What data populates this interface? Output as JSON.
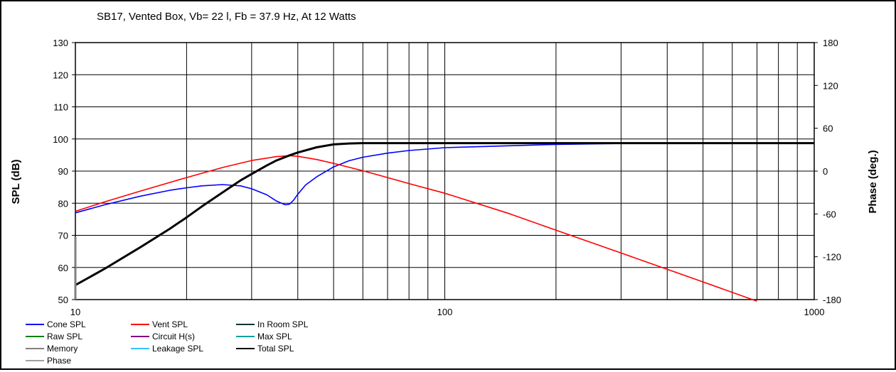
{
  "chart_data": {
    "type": "line",
    "title": "SB17,  Vented Box, Vb= 22 l,  Fb = 37.9 Hz,  At 12 Watts",
    "xlabel": "",
    "ylabel": "SPL (dB)",
    "y2label": "Phase (deg.)",
    "x_scale": "log",
    "xlim": [
      10,
      1000
    ],
    "ylim": [
      50,
      130
    ],
    "y2lim": [
      -180,
      180
    ],
    "grid": true,
    "x_ticks": [
      {
        "value": 10,
        "label": "10"
      },
      {
        "value": 100,
        "label": "100"
      },
      {
        "value": 1000,
        "label": "1000"
      }
    ],
    "y_ticks": [
      {
        "value": 50,
        "label": "50"
      },
      {
        "value": 60,
        "label": "60"
      },
      {
        "value": 70,
        "label": "70"
      },
      {
        "value": 80,
        "label": "80"
      },
      {
        "value": 90,
        "label": "90"
      },
      {
        "value": 100,
        "label": "100"
      },
      {
        "value": 110,
        "label": "110"
      },
      {
        "value": 120,
        "label": "120"
      },
      {
        "value": 130,
        "label": "130"
      }
    ],
    "y2_ticks": [
      {
        "value": 180,
        "label": "180"
      },
      {
        "value": 120,
        "label": "120"
      },
      {
        "value": 60,
        "label": "60"
      },
      {
        "value": 0,
        "label": "0"
      },
      {
        "value": -60,
        "label": "-60"
      },
      {
        "value": -120,
        "label": "-120"
      },
      {
        "value": -180,
        "label": "-180"
      }
    ],
    "series": [
      {
        "name": "Cone SPL",
        "color": "#0000ff",
        "x": [
          10,
          12,
          15,
          18,
          20,
          22,
          25,
          28,
          30,
          33,
          35,
          37,
          38,
          39,
          40,
          42,
          45,
          50,
          55,
          60,
          70,
          80,
          100,
          150,
          200,
          300,
          350
        ],
        "y": [
          77,
          79.5,
          82.2,
          84,
          84.8,
          85.4,
          85.8,
          85.4,
          84.5,
          82.6,
          80.7,
          79.5,
          79.7,
          81,
          82.8,
          85.7,
          88.2,
          91.3,
          93.2,
          94.3,
          95.6,
          96.4,
          97.3,
          97.9,
          98.3,
          98.6,
          98.7
        ]
      },
      {
        "name": "Vent SPL",
        "color": "#ff0000",
        "x": [
          10,
          12,
          15,
          20,
          25,
          30,
          35,
          38,
          40,
          45,
          50,
          60,
          70,
          80,
          100,
          150,
          200,
          300,
          500,
          700
        ],
        "y": [
          77.5,
          80.4,
          83.8,
          88,
          91.1,
          93.3,
          94.5,
          94.8,
          94.6,
          93.6,
          92.4,
          90.1,
          88,
          86.1,
          83.1,
          76.7,
          71.6,
          64.5,
          55.5,
          49.5
        ]
      },
      {
        "name": "Total SPL",
        "color": "#000000",
        "x": [
          10,
          12,
          15,
          18,
          20,
          22,
          25,
          28,
          30,
          33,
          35,
          38,
          40,
          45,
          50,
          55,
          60,
          70,
          100,
          200,
          500,
          1000
        ],
        "y": [
          54.5,
          59.6,
          66.3,
          72,
          75.6,
          79,
          83.3,
          87.1,
          89.1,
          91.8,
          93.3,
          94.9,
          95.8,
          97.4,
          98.3,
          98.6,
          98.7,
          98.7,
          98.7,
          98.7,
          98.7,
          98.7
        ]
      },
      {
        "name": "Memory",
        "color": "#808080",
        "x": [
          10,
          10
        ],
        "y": [
          50,
          69.5
        ]
      }
    ],
    "legend": {
      "placement": "bottom",
      "items": [
        {
          "name": "Cone SPL",
          "color": "#0000ff"
        },
        {
          "name": "Vent SPL",
          "color": "#ff0000"
        },
        {
          "name": "In Room SPL",
          "color": "#003333"
        },
        {
          "name": "Raw SPL",
          "color": "#008000"
        },
        {
          "name": "Circuit H(s)",
          "color": "#800080"
        },
        {
          "name": "Max SPL",
          "color": "#00a0a0"
        },
        {
          "name": "Memory",
          "color": "#808080"
        },
        {
          "name": "Leakage SPL",
          "color": "#33c0ff"
        },
        {
          "name": "Total SPL",
          "color": "#000000"
        },
        {
          "name": "Phase",
          "color": "#a0a0a0"
        }
      ]
    }
  }
}
